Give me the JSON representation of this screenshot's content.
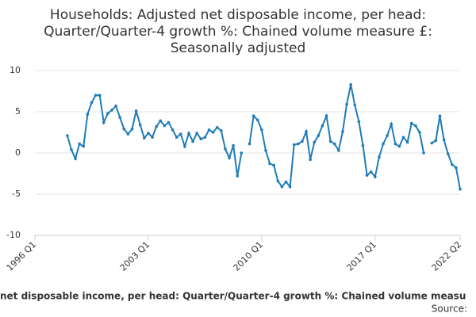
{
  "chart_data": {
    "type": "line",
    "title": [
      "Households: Adjusted net disposable income, per head:",
      "Quarter/Quarter-4 growth %: Chained volume measure £:",
      "Seasonally adjusted"
    ],
    "x_label": "net disposable income, per head: Quarter/Quarter-4 growth %: Chained volume measu",
    "source": "Source:",
    "categories": [
      "1996 Q1",
      null,
      null,
      null,
      null,
      null,
      null,
      null,
      null,
      null,
      null,
      null,
      null,
      null,
      null,
      null,
      null,
      null,
      null,
      null,
      null,
      null,
      null,
      null,
      null,
      null,
      null,
      null,
      "2003 Q1",
      null,
      null,
      null,
      null,
      null,
      null,
      null,
      null,
      null,
      null,
      null,
      null,
      null,
      null,
      null,
      null,
      null,
      null,
      null,
      null,
      null,
      null,
      null,
      null,
      null,
      null,
      null,
      "2010 Q1",
      null,
      null,
      null,
      null,
      null,
      null,
      null,
      null,
      null,
      null,
      null,
      null,
      null,
      null,
      null,
      null,
      null,
      null,
      null,
      null,
      null,
      null,
      null,
      null,
      null,
      null,
      null,
      "2017 Q1",
      null,
      null,
      null,
      null,
      null,
      null,
      null,
      null,
      null,
      null,
      null,
      null,
      null,
      null,
      null,
      null,
      null,
      null,
      null,
      null,
      "2022 Q2"
    ],
    "series": [
      {
        "color": "#1f7cb8",
        "values": [
          null,
          null,
          null,
          null,
          null,
          null,
          null,
          null,
          2.1,
          0.4,
          -0.7,
          1.1,
          0.8,
          4.7,
          6.1,
          7.0,
          7.0,
          3.7,
          4.8,
          5.2,
          5.7,
          4.3,
          2.9,
          2.3,
          2.9,
          5.1,
          3.4,
          1.8,
          2.4,
          1.9,
          3.2,
          3.9,
          3.3,
          3.7,
          2.8,
          1.9,
          2.3,
          0.8,
          2.4,
          1.4,
          2.4,
          1.7,
          1.9,
          2.8,
          2.5,
          3.1,
          2.7,
          0.5,
          -0.6,
          0.9,
          -2.8,
          0.0,
          null,
          1.1,
          4.5,
          4.0,
          2.8,
          0.3,
          -1.3,
          -1.5,
          -3.4,
          -4.1,
          -3.5,
          -4.1,
          1.0,
          1.1,
          1.4,
          2.6,
          -0.8,
          1.3,
          2.1,
          3.3,
          4.5,
          1.4,
          1.1,
          0.3,
          2.6,
          5.9,
          8.3,
          5.8,
          3.8,
          0.9,
          -2.7,
          -2.3,
          -2.9,
          -0.5,
          1.1,
          2.1,
          3.5,
          1.1,
          0.8,
          1.9,
          1.3,
          3.6,
          3.3,
          2.5,
          0.0,
          null,
          1.2,
          1.5,
          4.5,
          1.6,
          -0.1,
          -1.4,
          -1.8,
          -4.4
        ]
      }
    ],
    "ylim": [
      -10,
      10
    ],
    "yticks": [
      -10,
      -5,
      0,
      5,
      10
    ],
    "grid": true
  }
}
